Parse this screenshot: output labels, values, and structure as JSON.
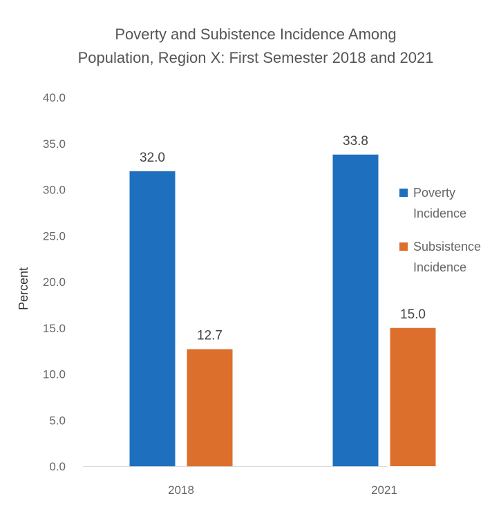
{
  "chart_data": {
    "type": "bar",
    "title_lines": [
      "Poverty and Subistence Incidence Among",
      "Population, Region X: First Semester 2018 and 2021"
    ],
    "ylabel": "Percent",
    "xlabel": "",
    "ylim": [
      0,
      40
    ],
    "ytick_step": 5,
    "ytick_labels": [
      "0.0",
      "5.0",
      "10.0",
      "15.0",
      "20.0",
      "25.0",
      "30.0",
      "35.0",
      "40.0"
    ],
    "categories": [
      "2018",
      "2021"
    ],
    "grid": false,
    "legend_position": "right",
    "series": [
      {
        "name_lines": [
          "Poverty",
          "Incidence"
        ],
        "values": [
          32.0,
          33.8
        ],
        "value_labels": [
          "32.0",
          "33.8"
        ],
        "color": "#1f6fbf"
      },
      {
        "name_lines": [
          "Subsistence",
          "Incidence"
        ],
        "values": [
          12.7,
          15.0
        ],
        "value_labels": [
          "12.7",
          "15.0"
        ],
        "color": "#dd6f2c"
      }
    ]
  }
}
